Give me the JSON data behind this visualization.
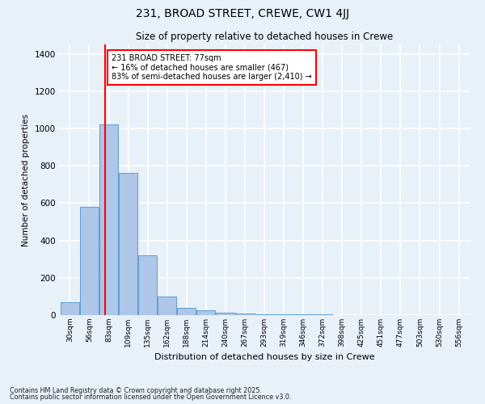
{
  "title1": "231, BROAD STREET, CREWE, CW1 4JJ",
  "title2": "Size of property relative to detached houses in Crewe",
  "xlabel": "Distribution of detached houses by size in Crewe",
  "ylabel": "Number of detached properties",
  "categories": [
    "30sqm",
    "56sqm",
    "83sqm",
    "109sqm",
    "135sqm",
    "162sqm",
    "188sqm",
    "214sqm",
    "240sqm",
    "267sqm",
    "293sqm",
    "319sqm",
    "346sqm",
    "372sqm",
    "398sqm",
    "425sqm",
    "451sqm",
    "477sqm",
    "503sqm",
    "530sqm",
    "556sqm"
  ],
  "bar_heights": [
    70,
    580,
    1020,
    760,
    320,
    100,
    40,
    25,
    15,
    8,
    3,
    3,
    3,
    3,
    0,
    0,
    0,
    0,
    0,
    0,
    0
  ],
  "bar_color": "#aec6e8",
  "bar_edge_color": "#5a9fd4",
  "vline_color": "red",
  "annotation_line1": "231 BROAD STREET: 77sqm",
  "annotation_line2": "← 16% of detached houses are smaller (467)",
  "annotation_line3": "83% of semi-detached houses are larger (2,410) →",
  "annotation_box_color": "red",
  "annotation_bg": "white",
  "ylim": [
    0,
    1450
  ],
  "yticks": [
    0,
    200,
    400,
    600,
    800,
    1000,
    1200,
    1400
  ],
  "background_color": "#e8f0f8",
  "grid_color": "#ffffff",
  "footer1": "Contains HM Land Registry data © Crown copyright and database right 2025.",
  "footer2": "Contains public sector information licensed under the Open Government Licence v3.0."
}
